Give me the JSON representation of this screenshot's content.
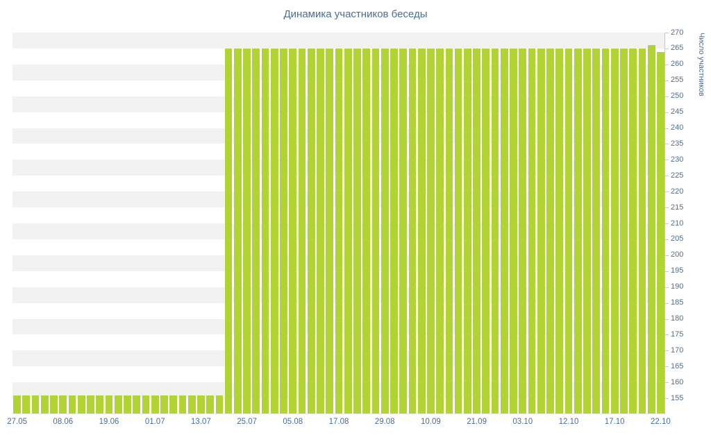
{
  "chart_data": {
    "type": "bar",
    "title": "Динамика участников беседы",
    "xlabel": "",
    "ylabel": "Число участников",
    "ylim": [
      150,
      270
    ],
    "ytick_step": 5,
    "ytick_label_min": 155,
    "ytick_label_max": 270,
    "grid": "alternating-horizontal-bands",
    "legend_position": "none",
    "x_label_every": 5,
    "x_labels": [
      "27.05",
      "08.06",
      "19.06",
      "01.07",
      "13.07",
      "25.07",
      "05.08",
      "17.08",
      "29.08",
      "10.09",
      "21.09",
      "03.10",
      "12.10",
      "17.10",
      "22.10"
    ],
    "values": [
      156,
      156,
      156,
      156,
      156,
      156,
      156,
      156,
      156,
      156,
      156,
      156,
      156,
      156,
      156,
      156,
      156,
      156,
      156,
      156,
      156,
      156,
      156,
      265,
      265,
      265,
      265,
      265,
      265,
      265,
      265,
      265,
      265,
      265,
      265,
      265,
      265,
      265,
      265,
      265,
      265,
      265,
      265,
      265,
      265,
      265,
      265,
      265,
      265,
      265,
      265,
      265,
      265,
      265,
      265,
      265,
      265,
      265,
      265,
      265,
      265,
      265,
      265,
      265,
      265,
      265,
      265,
      265,
      265,
      266,
      264
    ],
    "colors": {
      "bar": "#b1d333",
      "text": "#4a6e96",
      "band": "#f2f2f2",
      "axis": "#c9c9c9"
    }
  }
}
